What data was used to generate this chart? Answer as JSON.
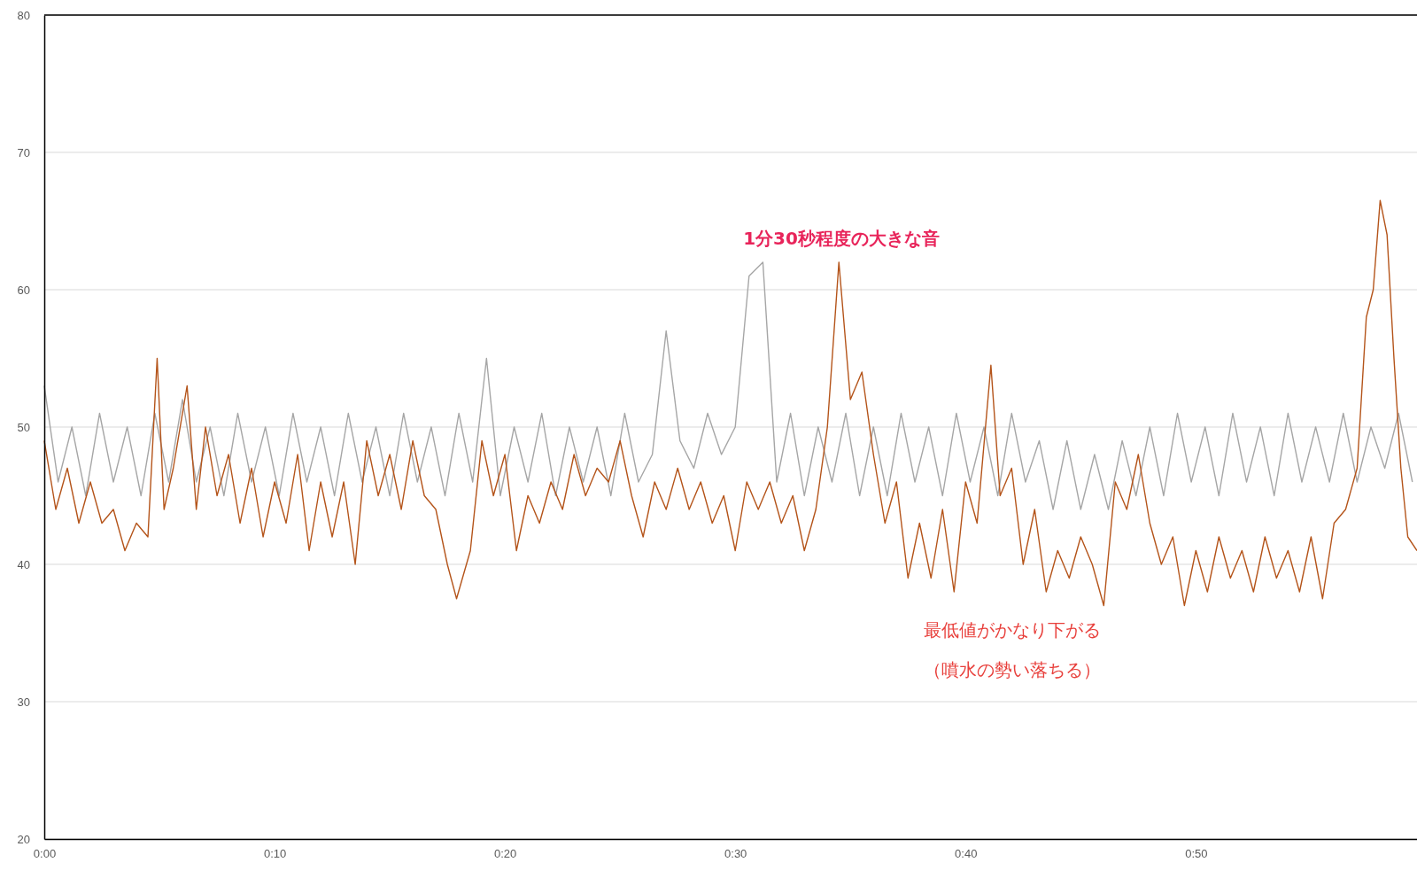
{
  "chart_data": {
    "type": "line",
    "x": [
      0,
      0.6,
      1.2,
      1.8,
      2.4,
      3.0,
      3.6,
      4.2,
      4.8,
      5.4,
      6.0,
      6.6,
      7.2,
      7.8,
      8.4,
      9.0,
      9.6,
      10.2,
      10.8,
      11.4,
      12.0,
      12.6,
      13.2,
      13.8,
      14.4,
      15.0,
      15.6,
      16.2,
      16.8,
      17.4,
      18.0,
      18.6,
      19.2,
      19.8,
      20.4,
      21.0,
      21.6,
      22.2,
      22.8,
      23.4,
      24.0,
      24.6,
      25.2,
      25.8,
      26.4,
      27.0,
      27.6,
      28.2,
      28.8,
      29.4,
      30.0,
      30.6,
      31.2,
      31.8,
      32.4,
      33.0,
      33.6,
      34.2,
      34.8,
      35.4,
      36.0,
      36.6,
      37.2,
      37.8,
      38.4,
      39.0,
      39.6,
      40.2,
      40.8,
      41.4,
      42.0,
      42.6,
      43.2,
      43.8,
      44.4,
      45.0,
      45.6,
      46.2,
      46.8,
      47.4,
      48.0,
      48.6,
      49.2,
      49.8,
      50.4,
      51.0,
      51.6,
      52.2,
      52.8,
      53.4,
      54.0,
      54.6,
      55.2,
      55.8,
      56.4,
      57.0,
      57.6,
      58.2,
      58.8,
      59.4
    ],
    "series": [
      {
        "color": "#a6a6a6",
        "values": [
          53,
          46,
          50,
          45,
          51,
          46,
          50,
          45,
          51,
          46,
          52,
          46,
          50,
          45,
          51,
          46,
          50,
          45,
          51,
          46,
          50,
          45,
          51,
          46,
          50,
          45,
          51,
          46,
          50,
          45,
          51,
          46,
          55,
          45,
          50,
          46,
          51,
          45,
          50,
          46,
          50,
          45,
          51,
          46,
          48,
          57,
          49,
          47,
          51,
          48,
          50,
          61,
          62,
          46,
          51,
          45,
          50,
          46,
          51,
          45,
          50,
          45,
          51,
          46,
          50,
          45,
          51,
          46,
          50,
          45,
          51,
          46,
          49,
          44,
          49,
          44,
          48,
          44,
          49,
          45,
          50,
          45,
          51,
          46,
          50,
          45,
          51,
          46,
          50,
          45,
          51,
          46,
          50,
          46,
          51,
          46,
          50,
          47,
          51,
          46
        ]
      },
      {
        "color": "#b4541a",
        "x": [
          0,
          0.5,
          1,
          1.5,
          2,
          2.5,
          3,
          3.5,
          4,
          4.5,
          4.9,
          5.2,
          5.6,
          6.2,
          6.6,
          7,
          7.5,
          8,
          8.5,
          9,
          9.5,
          10,
          10.5,
          11,
          11.5,
          12,
          12.5,
          13,
          13.5,
          14,
          14.5,
          15,
          15.5,
          16,
          16.5,
          17,
          17.5,
          17.9,
          18.5,
          19,
          19.5,
          20,
          20.5,
          21,
          21.5,
          22,
          22.5,
          23,
          23.5,
          24,
          24.5,
          25,
          25.5,
          26,
          26.5,
          27,
          27.5,
          28,
          28.5,
          29,
          29.5,
          30,
          30.5,
          31,
          31.5,
          32,
          32.5,
          33,
          33.5,
          34,
          34.5,
          35,
          35.5,
          36,
          36.5,
          37,
          37.5,
          38,
          38.5,
          39,
          39.5,
          40,
          40.5,
          41.1,
          41.5,
          42,
          42.5,
          43,
          43.5,
          44,
          44.5,
          45,
          45.5,
          46,
          46.5,
          47,
          47.5,
          48,
          48.5,
          49,
          49.5,
          50,
          50.5,
          51,
          51.5,
          52,
          52.5,
          53,
          53.5,
          54,
          54.5,
          55,
          55.5,
          56,
          56.5,
          57,
          57.4,
          57.7,
          58,
          58.3,
          58.6,
          58.9,
          59.2,
          59.6
        ],
        "values": [
          49,
          44,
          47,
          43,
          46,
          43,
          44,
          41,
          43,
          42,
          55,
          44,
          47,
          53,
          44,
          50,
          45,
          48,
          43,
          47,
          42,
          46,
          43,
          48,
          41,
          46,
          42,
          46,
          40,
          49,
          45,
          48,
          44,
          49,
          45,
          44,
          40,
          37.5,
          41,
          49,
          45,
          48,
          41,
          45,
          43,
          46,
          44,
          48,
          45,
          47,
          46,
          49,
          45,
          42,
          46,
          44,
          47,
          44,
          46,
          43,
          45,
          41,
          46,
          44,
          46,
          43,
          45,
          41,
          44,
          50,
          62,
          52,
          54,
          48,
          43,
          46,
          39,
          43,
          39,
          44,
          38,
          46,
          43,
          54.5,
          45,
          47,
          40,
          44,
          38,
          41,
          39,
          42,
          40,
          37,
          46,
          44,
          48,
          43,
          40,
          42,
          37,
          41,
          38,
          42,
          39,
          41,
          38,
          42,
          39,
          41,
          38,
          42,
          37.5,
          43,
          44,
          47,
          58,
          60,
          66.5,
          64,
          55,
          47,
          42,
          41
        ]
      }
    ],
    "xlim": [
      0,
      59.6
    ],
    "xticks": [
      {
        "value": 0,
        "label": "0:00"
      },
      {
        "value": 10,
        "label": "0:10"
      },
      {
        "value": 20,
        "label": "0:20"
      },
      {
        "value": 30,
        "label": "0:30"
      },
      {
        "value": 40,
        "label": "0:40"
      },
      {
        "value": 50,
        "label": "0:50"
      }
    ],
    "ylim": [
      20,
      80
    ],
    "yticks": [
      20,
      30,
      40,
      50,
      60,
      70,
      80
    ],
    "grid": "y",
    "marker": "none",
    "line_style": "solid",
    "annotations": [
      "1分30秒程度の大きな音",
      "最低値がかなり下がる",
      "（噴水の勢い落ちる）"
    ]
  }
}
